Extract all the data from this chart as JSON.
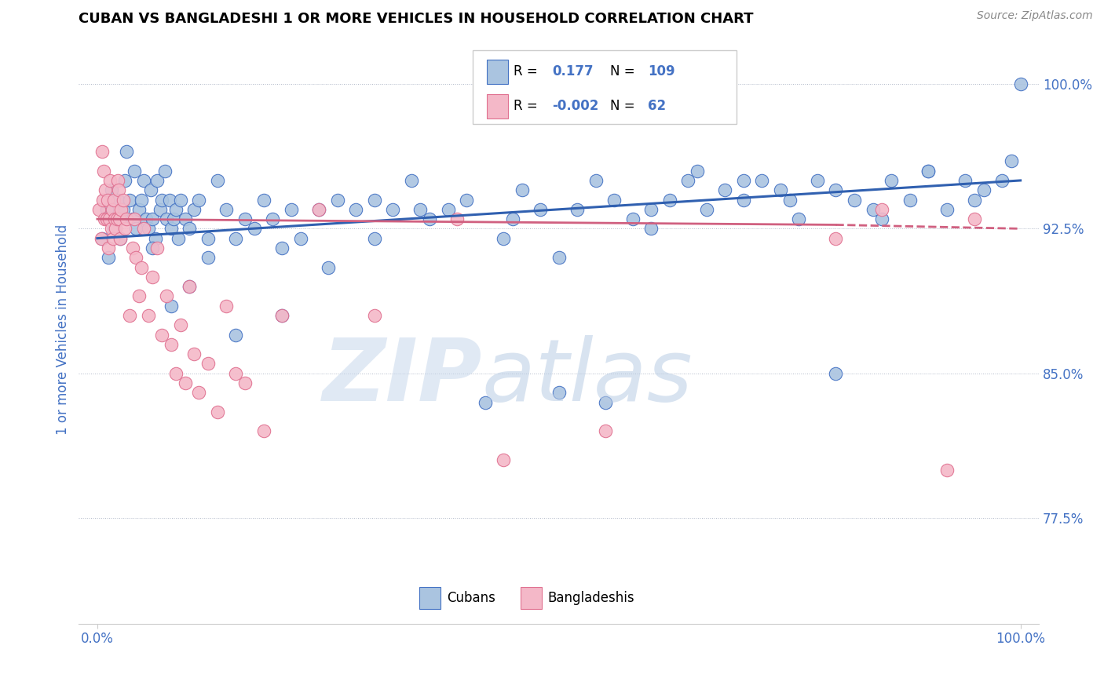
{
  "title": "CUBAN VS BANGLADESHI 1 OR MORE VEHICLES IN HOUSEHOLD CORRELATION CHART",
  "source_text": "Source: ZipAtlas.com",
  "ylabel": "1 or more Vehicles in Household",
  "xlim": [
    -2.0,
    102.0
  ],
  "ylim": [
    72.0,
    102.5
  ],
  "yticks": [
    77.5,
    85.0,
    92.5,
    100.0
  ],
  "ytick_labels": [
    "77.5%",
    "85.0%",
    "92.5%",
    "100.0%"
  ],
  "xtick_labels": [
    "0.0%",
    "100.0%"
  ],
  "R_cuban": 0.177,
  "N_cuban": 109,
  "R_bangladeshi": -0.002,
  "N_bangladeshi": 62,
  "blue_scatter_color": "#aac4e0",
  "blue_edge_color": "#4472c4",
  "pink_scatter_color": "#f4b8c8",
  "pink_edge_color": "#e07090",
  "blue_line_color": "#3060b0",
  "pink_line_color": "#d06080",
  "watermark_zip_color": "#c0d0e8",
  "watermark_atlas_color": "#b8cce0",
  "title_color": "#000000",
  "axis_label_color": "#4472c4",
  "tick_color": "#4472c4",
  "source_color": "#888888",
  "cuban_x": [
    0.5,
    1.0,
    1.2,
    1.5,
    1.8,
    2.0,
    2.2,
    2.5,
    2.8,
    3.0,
    3.2,
    3.5,
    3.8,
    4.0,
    4.2,
    4.5,
    4.8,
    5.0,
    5.3,
    5.5,
    5.8,
    6.0,
    6.3,
    6.5,
    6.8,
    7.0,
    7.3,
    7.5,
    7.8,
    8.0,
    8.3,
    8.5,
    8.8,
    9.0,
    9.5,
    10.0,
    10.5,
    11.0,
    12.0,
    13.0,
    14.0,
    15.0,
    16.0,
    17.0,
    18.0,
    19.0,
    20.0,
    21.0,
    22.0,
    24.0,
    26.0,
    28.0,
    30.0,
    32.0,
    34.0,
    36.0,
    38.0,
    40.0,
    42.0,
    44.0,
    46.0,
    48.0,
    50.0,
    52.0,
    54.0,
    56.0,
    58.0,
    60.0,
    62.0,
    64.0,
    66.0,
    68.0,
    70.0,
    72.0,
    74.0,
    76.0,
    78.0,
    80.0,
    82.0,
    84.0,
    86.0,
    88.0,
    90.0,
    92.0,
    94.0,
    96.0,
    98.0,
    99.0,
    45.0,
    50.0,
    55.0,
    60.0,
    65.0,
    70.0,
    75.0,
    80.0,
    85.0,
    90.0,
    95.0,
    100.0,
    30.0,
    35.0,
    25.0,
    20.0,
    15.0,
    12.0,
    10.0,
    8.0,
    6.0
  ],
  "cuban_y": [
    92.0,
    93.5,
    91.0,
    94.5,
    92.5,
    93.0,
    94.0,
    92.0,
    93.5,
    95.0,
    96.5,
    94.0,
    93.0,
    95.5,
    92.5,
    93.5,
    94.0,
    95.0,
    93.0,
    92.5,
    94.5,
    93.0,
    92.0,
    95.0,
    93.5,
    94.0,
    95.5,
    93.0,
    94.0,
    92.5,
    93.0,
    93.5,
    92.0,
    94.0,
    93.0,
    92.5,
    93.5,
    94.0,
    92.0,
    95.0,
    93.5,
    92.0,
    93.0,
    92.5,
    94.0,
    93.0,
    91.5,
    93.5,
    92.0,
    93.5,
    94.0,
    93.5,
    94.0,
    93.5,
    95.0,
    93.0,
    93.5,
    94.0,
    83.5,
    92.0,
    94.5,
    93.5,
    84.0,
    93.5,
    95.0,
    94.0,
    93.0,
    92.5,
    94.0,
    95.0,
    93.5,
    94.5,
    94.0,
    95.0,
    94.5,
    93.0,
    95.0,
    85.0,
    94.0,
    93.5,
    95.0,
    94.0,
    95.5,
    93.5,
    95.0,
    94.5,
    95.0,
    96.0,
    93.0,
    91.0,
    83.5,
    93.5,
    95.5,
    95.0,
    94.0,
    94.5,
    93.0,
    95.5,
    94.0,
    100.0,
    92.0,
    93.5,
    90.5,
    88.0,
    87.0,
    91.0,
    89.5,
    88.5,
    91.5
  ],
  "bang_x": [
    0.2,
    0.4,
    0.5,
    0.6,
    0.7,
    0.8,
    0.9,
    1.0,
    1.1,
    1.2,
    1.3,
    1.4,
    1.5,
    1.6,
    1.7,
    1.8,
    1.9,
    2.0,
    2.1,
    2.2,
    2.3,
    2.4,
    2.5,
    2.6,
    2.8,
    3.0,
    3.2,
    3.5,
    3.8,
    4.0,
    4.2,
    4.5,
    4.8,
    5.0,
    5.5,
    6.0,
    6.5,
    7.0,
    7.5,
    8.0,
    8.5,
    9.0,
    9.5,
    10.0,
    10.5,
    11.0,
    12.0,
    13.0,
    14.0,
    15.0,
    16.0,
    18.0,
    20.0,
    24.0,
    30.0,
    39.0,
    44.0,
    55.0,
    80.0,
    85.0,
    92.0,
    95.0
  ],
  "bang_y": [
    93.5,
    92.0,
    96.5,
    94.0,
    95.5,
    93.0,
    94.5,
    93.0,
    94.0,
    91.5,
    93.0,
    95.0,
    92.5,
    93.5,
    92.0,
    94.0,
    93.0,
    92.5,
    93.0,
    95.0,
    94.5,
    93.0,
    92.0,
    93.5,
    94.0,
    92.5,
    93.0,
    88.0,
    91.5,
    93.0,
    91.0,
    89.0,
    90.5,
    92.5,
    88.0,
    90.0,
    91.5,
    87.0,
    89.0,
    86.5,
    85.0,
    87.5,
    84.5,
    89.5,
    86.0,
    84.0,
    85.5,
    83.0,
    88.5,
    85.0,
    84.5,
    82.0,
    88.0,
    93.5,
    88.0,
    93.0,
    80.5,
    82.0,
    92.0,
    93.5,
    80.0,
    93.0
  ],
  "cuban_trend_y0": 92.0,
  "cuban_trend_y1": 95.0,
  "bang_trend_y0": 93.0,
  "bang_trend_y1": 93.0
}
